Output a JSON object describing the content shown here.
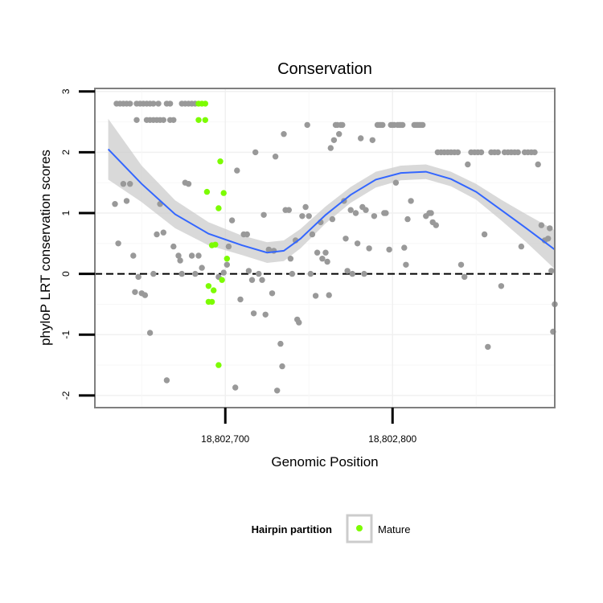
{
  "chart_data": {
    "type": "scatter",
    "title": "Conservation",
    "xlabel": "Genomic Position",
    "ylabel": "phyloP LRT conservation scores",
    "xlim": [
      18802622,
      18802897
    ],
    "ylim": [
      -2.2,
      3.05
    ],
    "x_ticks": [
      {
        "value": 18802700,
        "label": "18,802,700"
      },
      {
        "value": 18802800,
        "label": "18,802,800"
      }
    ],
    "y_ticks": [
      {
        "value": -2,
        "label": "-2"
      },
      {
        "value": -1,
        "label": "-1"
      },
      {
        "value": 0,
        "label": "0"
      },
      {
        "value": 1,
        "label": "1"
      },
      {
        "value": 2,
        "label": "2"
      },
      {
        "value": 3,
        "label": "3"
      }
    ],
    "reference_line": {
      "y": 0,
      "style": "dashed"
    },
    "grid": true,
    "legend": {
      "title": "Hairpin partition",
      "placement": "bottom",
      "entries": [
        {
          "label": "Mature",
          "color": "#7cfc00"
        }
      ]
    },
    "colors": {
      "other_points": "#999999",
      "mature_points": "#7cfc00",
      "smooth_line": "#3366ff",
      "confidence_band": "#cccccc",
      "panel_border": "#7f7f7f"
    },
    "series": [
      {
        "name": "",
        "color": "#999999",
        "points": [
          [
            18802635,
            2.8
          ],
          [
            18802637,
            2.8
          ],
          [
            18802639,
            2.8
          ],
          [
            18802641,
            2.8
          ],
          [
            18802643,
            2.8
          ],
          [
            18802647,
            2.8
          ],
          [
            18802649,
            2.8
          ],
          [
            18802651,
            2.8
          ],
          [
            18802653,
            2.8
          ],
          [
            18802655,
            2.8
          ],
          [
            18802657,
            2.8
          ],
          [
            18802660,
            2.8
          ],
          [
            18802665,
            2.8
          ],
          [
            18802667,
            2.8
          ],
          [
            18802674,
            2.8
          ],
          [
            18802676,
            2.8
          ],
          [
            18802678,
            2.8
          ],
          [
            18802680,
            2.8
          ],
          [
            18802682,
            2.8
          ],
          [
            18802647,
            2.53
          ],
          [
            18802653,
            2.53
          ],
          [
            18802655,
            2.53
          ],
          [
            18802657,
            2.53
          ],
          [
            18802659,
            2.53
          ],
          [
            18802661,
            2.53
          ],
          [
            18802663,
            2.53
          ],
          [
            18802667,
            2.53
          ],
          [
            18802669,
            2.53
          ],
          [
            18802634,
            1.15
          ],
          [
            18802636,
            0.5
          ],
          [
            18802639,
            1.48
          ],
          [
            18802641,
            1.2
          ],
          [
            18802643,
            1.48
          ],
          [
            18802645,
            0.3
          ],
          [
            18802646,
            -0.3
          ],
          [
            18802648,
            -0.05
          ],
          [
            18802650,
            -0.32
          ],
          [
            18802652,
            -0.35
          ],
          [
            18802655,
            -0.97
          ],
          [
            18802657,
            0.0
          ],
          [
            18802659,
            0.65
          ],
          [
            18802661,
            1.15
          ],
          [
            18802663,
            0.68
          ],
          [
            18802665,
            -1.75
          ],
          [
            18802669,
            0.45
          ],
          [
            18802672,
            0.3
          ],
          [
            18802673,
            0.22
          ],
          [
            18802674,
            0.0
          ],
          [
            18802676,
            1.5
          ],
          [
            18802678,
            1.48
          ],
          [
            18802680,
            0.3
          ],
          [
            18802682,
            0.0
          ],
          [
            18802684,
            0.3
          ],
          [
            18802686,
            0.1
          ],
          [
            18802696,
            -0.05
          ],
          [
            18802699,
            0.02
          ],
          [
            18802701,
            0.15
          ],
          [
            18802702,
            0.45
          ],
          [
            18802704,
            0.88
          ],
          [
            18802706,
            -1.87
          ],
          [
            18802707,
            1.7
          ],
          [
            18802709,
            -0.42
          ],
          [
            18802711,
            0.65
          ],
          [
            18802713,
            0.65
          ],
          [
            18802714,
            0.05
          ],
          [
            18802716,
            -0.1
          ],
          [
            18802717,
            -0.65
          ],
          [
            18802718,
            2.0
          ],
          [
            18802720,
            0.0
          ],
          [
            18802722,
            -0.1
          ],
          [
            18802723,
            0.97
          ],
          [
            18802724,
            -0.67
          ],
          [
            18802726,
            0.4
          ],
          [
            18802728,
            -0.32
          ],
          [
            18802729,
            0.38
          ],
          [
            18802730,
            1.93
          ],
          [
            18802731,
            -1.92
          ],
          [
            18802733,
            -1.15
          ],
          [
            18802734,
            -1.52
          ],
          [
            18802735,
            2.3
          ],
          [
            18802736,
            1.05
          ],
          [
            18802738,
            1.05
          ],
          [
            18802739,
            0.25
          ],
          [
            18802740,
            0.0
          ],
          [
            18802742,
            0.55
          ],
          [
            18802743,
            -0.75
          ],
          [
            18802744,
            -0.8
          ],
          [
            18802746,
            0.95
          ],
          [
            18802748,
            1.1
          ],
          [
            18802749,
            2.45
          ],
          [
            18802750,
            0.95
          ],
          [
            18802751,
            0.0
          ],
          [
            18802752,
            0.65
          ],
          [
            18802754,
            -0.36
          ],
          [
            18802755,
            0.35
          ],
          [
            18802757,
            0.85
          ],
          [
            18802758,
            0.25
          ],
          [
            18802760,
            0.35
          ],
          [
            18802761,
            0.2
          ],
          [
            18802762,
            -0.35
          ],
          [
            18802763,
            2.07
          ],
          [
            18802764,
            0.9
          ],
          [
            18802765,
            2.2
          ],
          [
            18802766,
            2.45
          ],
          [
            18802767,
            2.45
          ],
          [
            18802768,
            2.3
          ],
          [
            18802769,
            2.45
          ],
          [
            18802770,
            2.45
          ],
          [
            18802771,
            1.2
          ],
          [
            18802772,
            0.58
          ],
          [
            18802773,
            0.05
          ],
          [
            18802775,
            1.05
          ],
          [
            18802776,
            0.0
          ],
          [
            18802778,
            1.0
          ],
          [
            18802779,
            0.5
          ],
          [
            18802781,
            2.23
          ],
          [
            18802782,
            1.1
          ],
          [
            18802783,
            0.0
          ],
          [
            18802784,
            1.05
          ],
          [
            18802786,
            0.42
          ],
          [
            18802788,
            2.2
          ],
          [
            18802789,
            0.95
          ],
          [
            18802791,
            2.45
          ],
          [
            18802792,
            2.45
          ],
          [
            18802793,
            2.45
          ],
          [
            18802794,
            2.45
          ],
          [
            18802795,
            1.0
          ],
          [
            18802796,
            1.0
          ],
          [
            18802798,
            0.4
          ],
          [
            18802799,
            2.45
          ],
          [
            18802800,
            2.45
          ],
          [
            18802801,
            2.45
          ],
          [
            18802802,
            1.5
          ],
          [
            18802803,
            2.45
          ],
          [
            18802804,
            2.45
          ],
          [
            18802805,
            2.45
          ],
          [
            18802806,
            2.45
          ],
          [
            18802807,
            0.43
          ],
          [
            18802808,
            0.15
          ],
          [
            18802809,
            0.9
          ],
          [
            18802811,
            1.2
          ],
          [
            18802813,
            2.45
          ],
          [
            18802814,
            2.45
          ],
          [
            18802815,
            2.45
          ],
          [
            18802816,
            2.45
          ],
          [
            18802817,
            2.45
          ],
          [
            18802818,
            2.45
          ],
          [
            18802820,
            0.95
          ],
          [
            18802822,
            1.0
          ],
          [
            18802823,
            1.0
          ],
          [
            18802824,
            0.85
          ],
          [
            18802826,
            0.8
          ],
          [
            18802827,
            2.0
          ],
          [
            18802829,
            2.0
          ],
          [
            18802831,
            2.0
          ],
          [
            18802833,
            2.0
          ],
          [
            18802835,
            2.0
          ],
          [
            18802837,
            2.0
          ],
          [
            18802839,
            2.0
          ],
          [
            18802841,
            0.15
          ],
          [
            18802843,
            -0.05
          ],
          [
            18802845,
            1.8
          ],
          [
            18802847,
            2.0
          ],
          [
            18802849,
            2.0
          ],
          [
            18802851,
            2.0
          ],
          [
            18802853,
            2.0
          ],
          [
            18802855,
            0.65
          ],
          [
            18802857,
            -1.2
          ],
          [
            18802859,
            2.0
          ],
          [
            18802861,
            2.0
          ],
          [
            18802863,
            2.0
          ],
          [
            18802865,
            -0.2
          ],
          [
            18802867,
            2.0
          ],
          [
            18802869,
            2.0
          ],
          [
            18802871,
            2.0
          ],
          [
            18802873,
            2.0
          ],
          [
            18802875,
            2.0
          ],
          [
            18802877,
            0.45
          ],
          [
            18802879,
            2.0
          ],
          [
            18802881,
            2.0
          ],
          [
            18802883,
            2.0
          ],
          [
            18802885,
            2.0
          ],
          [
            18802887,
            1.8
          ],
          [
            18802889,
            0.8
          ],
          [
            18802891,
            0.55
          ],
          [
            18802893,
            0.58
          ],
          [
            18802894,
            0.75
          ],
          [
            18802895,
            0.05
          ],
          [
            18802896,
            -0.95
          ],
          [
            18802897,
            -0.5
          ]
        ]
      },
      {
        "name": "Mature",
        "color": "#7cfc00",
        "points": [
          [
            18802684,
            2.8
          ],
          [
            18802686,
            2.8
          ],
          [
            18802688,
            2.8
          ],
          [
            18802684,
            2.53
          ],
          [
            18802688,
            2.53
          ],
          [
            18802689,
            1.35
          ],
          [
            18802692,
            0.47
          ],
          [
            18802694,
            0.48
          ],
          [
            18802696,
            1.08
          ],
          [
            18802697,
            1.85
          ],
          [
            18802699,
            1.33
          ],
          [
            18802698,
            -0.1
          ],
          [
            18802701,
            0.25
          ],
          [
            18802690,
            -0.2
          ],
          [
            18802693,
            -0.27
          ],
          [
            18802690,
            -0.46
          ],
          [
            18802692,
            -0.46
          ],
          [
            18802696,
            -1.5
          ]
        ]
      }
    ],
    "smooth": {
      "x": [
        18802630,
        18802650,
        18802670,
        18802690,
        18802710,
        18802725,
        18802735,
        18802745,
        18802760,
        18802775,
        18802790,
        18802805,
        18802820,
        18802835,
        18802850,
        18802865,
        18802880,
        18802897
      ],
      "y": [
        2.05,
        1.48,
        0.98,
        0.66,
        0.47,
        0.35,
        0.38,
        0.58,
        0.97,
        1.3,
        1.55,
        1.66,
        1.68,
        1.56,
        1.35,
        1.05,
        0.75,
        0.4
      ],
      "upper": [
        2.55,
        1.78,
        1.21,
        0.85,
        0.63,
        0.52,
        0.55,
        0.74,
        1.11,
        1.43,
        1.68,
        1.78,
        1.8,
        1.68,
        1.48,
        1.22,
        0.98,
        0.72
      ],
      "lower": [
        1.55,
        1.18,
        0.75,
        0.47,
        0.31,
        0.18,
        0.21,
        0.42,
        0.83,
        1.17,
        1.42,
        1.54,
        1.56,
        1.44,
        1.22,
        0.88,
        0.52,
        0.08
      ]
    }
  }
}
